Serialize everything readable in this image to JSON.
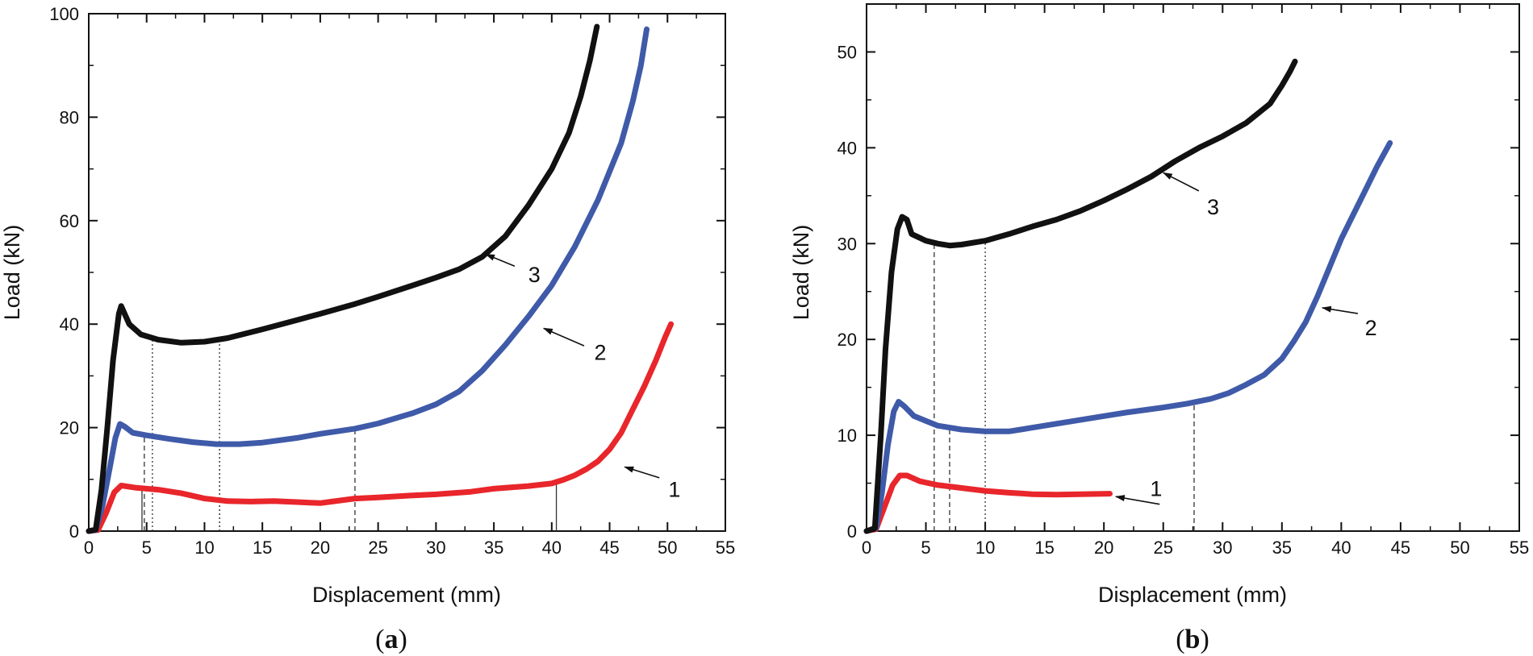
{
  "panels": [
    {
      "id": "a",
      "panel_label": "a",
      "xlabel": "Displacement (mm)",
      "ylabel": "Load (kN)",
      "xlim": [
        0,
        55
      ],
      "ylim": [
        0,
        100
      ],
      "xticks": [
        0,
        5,
        10,
        15,
        20,
        25,
        30,
        35,
        40,
        45,
        50,
        55
      ],
      "yticks": [
        0,
        20,
        40,
        60,
        80,
        100
      ],
      "series": [
        {
          "name": "1",
          "color": "#e8262b",
          "points": [
            [
              0,
              0
            ],
            [
              0.8,
              0.2
            ],
            [
              1.5,
              3.5
            ],
            [
              2.2,
              7.5
            ],
            [
              2.8,
              8.8
            ],
            [
              4,
              8.4
            ],
            [
              6,
              8
            ],
            [
              8,
              7.3
            ],
            [
              10,
              6.3
            ],
            [
              12,
              5.8
            ],
            [
              14,
              5.7
            ],
            [
              16,
              5.8
            ],
            [
              18,
              5.6
            ],
            [
              20,
              5.4
            ],
            [
              21,
              5.7
            ],
            [
              23,
              6.3
            ],
            [
              25,
              6.5
            ],
            [
              28,
              6.9
            ],
            [
              30,
              7.1
            ],
            [
              33,
              7.6
            ],
            [
              35,
              8.2
            ],
            [
              38,
              8.7
            ],
            [
              40,
              9.2
            ],
            [
              41,
              9.9
            ],
            [
              42,
              10.8
            ],
            [
              43,
              12
            ],
            [
              44,
              13.5
            ],
            [
              45,
              15.8
            ],
            [
              46,
              19
            ],
            [
              47,
              23.5
            ],
            [
              48,
              28
            ],
            [
              49,
              33
            ],
            [
              49.8,
              37.5
            ],
            [
              50.3,
              40
            ]
          ]
        },
        {
          "name": "2",
          "color": "#3f5aa8",
          "points": [
            [
              0,
              0
            ],
            [
              0.6,
              0.2
            ],
            [
              1.2,
              5
            ],
            [
              1.8,
              12
            ],
            [
              2.3,
              18
            ],
            [
              2.7,
              20.7
            ],
            [
              3.1,
              20.2
            ],
            [
              3.8,
              19
            ],
            [
              5,
              18.5
            ],
            [
              7,
              17.8
            ],
            [
              9,
              17.2
            ],
            [
              11,
              16.8
            ],
            [
              13,
              16.8
            ],
            [
              15,
              17.1
            ],
            [
              18,
              18
            ],
            [
              20,
              18.8
            ],
            [
              23,
              19.8
            ],
            [
              25,
              20.8
            ],
            [
              28,
              22.8
            ],
            [
              30,
              24.5
            ],
            [
              32,
              27
            ],
            [
              34,
              31
            ],
            [
              36,
              36
            ],
            [
              38,
              41.5
            ],
            [
              40,
              47.5
            ],
            [
              42,
              55
            ],
            [
              44,
              64
            ],
            [
              46,
              75
            ],
            [
              47,
              83
            ],
            [
              47.7,
              90
            ],
            [
              48.2,
              97
            ]
          ]
        },
        {
          "name": "3",
          "color": "#111111",
          "points": [
            [
              0,
              0
            ],
            [
              0.6,
              0.3
            ],
            [
              1.1,
              8
            ],
            [
              1.6,
              20
            ],
            [
              2.1,
              33
            ],
            [
              2.6,
              42
            ],
            [
              2.8,
              43.5
            ],
            [
              3.1,
              42
            ],
            [
              3.5,
              40
            ],
            [
              4.5,
              38
            ],
            [
              6,
              37
            ],
            [
              8,
              36.4
            ],
            [
              10,
              36.6
            ],
            [
              12,
              37.3
            ],
            [
              15,
              39
            ],
            [
              18,
              40.8
            ],
            [
              20,
              42
            ],
            [
              23,
              43.9
            ],
            [
              25,
              45.3
            ],
            [
              28,
              47.5
            ],
            [
              30,
              49
            ],
            [
              32,
              50.6
            ],
            [
              34,
              53
            ],
            [
              36,
              57
            ],
            [
              38,
              63
            ],
            [
              40,
              70
            ],
            [
              41.5,
              77
            ],
            [
              42.5,
              84
            ],
            [
              43.3,
              91
            ],
            [
              43.9,
              97.5
            ]
          ]
        }
      ],
      "annotations": [
        {
          "text": "1",
          "data_x": 50.6,
          "data_y": 8,
          "arrow_from": [
            49.3,
            10.3
          ],
          "arrow_to": [
            46.3,
            12.4
          ]
        },
        {
          "text": "2",
          "data_x": 44.2,
          "data_y": 34.5,
          "arrow_from": [
            42.8,
            35.8
          ],
          "arrow_to": [
            39.3,
            39.2
          ]
        },
        {
          "text": "3",
          "data_x": 38.5,
          "data_y": 49.5,
          "arrow_from": [
            36.8,
            51.2
          ],
          "arrow_to": [
            34.3,
            53.5
          ]
        }
      ],
      "droplines": [
        {
          "x": 4.6,
          "y": 8.4,
          "style": "solid"
        },
        {
          "x": 4.8,
          "y": 18.6,
          "style": "dashed"
        },
        {
          "x": 5.5,
          "y": 37.5,
          "style": "dotted"
        },
        {
          "x": 11.3,
          "y": 16.8,
          "style": "dotted"
        },
        {
          "x": 11.3,
          "y": 36.9,
          "style": "dotted"
        },
        {
          "x": 23.0,
          "y": 19.8,
          "style": "dashed"
        },
        {
          "x": 40.4,
          "y": 9.4,
          "style": "solid"
        }
      ]
    },
    {
      "id": "b",
      "panel_label": "b",
      "xlabel": "Displacement (mm)",
      "ylabel": "Load (kN)",
      "xlim": [
        0,
        55
      ],
      "ylim": [
        0,
        55
      ],
      "xticks": [
        0,
        5,
        10,
        15,
        20,
        25,
        30,
        35,
        40,
        45,
        50,
        55
      ],
      "yticks": [
        0,
        10,
        20,
        30,
        40,
        50
      ],
      "series": [
        {
          "name": "1",
          "color": "#e8262b",
          "points": [
            [
              0,
              0
            ],
            [
              0.8,
              0.2
            ],
            [
              1.5,
              2.5
            ],
            [
              2.2,
              4.8
            ],
            [
              2.8,
              5.8
            ],
            [
              3.4,
              5.8
            ],
            [
              4.5,
              5.2
            ],
            [
              6,
              4.8
            ],
            [
              8,
              4.5
            ],
            [
              10,
              4.2
            ],
            [
              12,
              4
            ],
            [
              14,
              3.85
            ],
            [
              16,
              3.8
            ],
            [
              18,
              3.85
            ],
            [
              20.5,
              3.9
            ]
          ]
        },
        {
          "name": "2",
          "color": "#3f5aa8",
          "points": [
            [
              0,
              0
            ],
            [
              0.8,
              0.3
            ],
            [
              1.3,
              4
            ],
            [
              1.8,
              9
            ],
            [
              2.3,
              12.5
            ],
            [
              2.7,
              13.5
            ],
            [
              3.2,
              13
            ],
            [
              4,
              12
            ],
            [
              6,
              11
            ],
            [
              8,
              10.6
            ],
            [
              10,
              10.4
            ],
            [
              12,
              10.4
            ],
            [
              14,
              10.8
            ],
            [
              18,
              11.6
            ],
            [
              20,
              12
            ],
            [
              22,
              12.4
            ],
            [
              25,
              12.9
            ],
            [
              27,
              13.3
            ],
            [
              29,
              13.8
            ],
            [
              30.5,
              14.4
            ],
            [
              32,
              15.3
            ],
            [
              33.5,
              16.3
            ],
            [
              35,
              18
            ],
            [
              36,
              19.8
            ],
            [
              37,
              21.8
            ],
            [
              38,
              24.5
            ],
            [
              39,
              27.5
            ],
            [
              40,
              30.5
            ],
            [
              41,
              33
            ],
            [
              42,
              35.5
            ],
            [
              43,
              38
            ],
            [
              44.1,
              40.5
            ]
          ]
        },
        {
          "name": "3",
          "color": "#111111",
          "points": [
            [
              0,
              0
            ],
            [
              0.7,
              0.3
            ],
            [
              1.2,
              10
            ],
            [
              1.6,
              19
            ],
            [
              2.1,
              27
            ],
            [
              2.6,
              31.5
            ],
            [
              3,
              32.8
            ],
            [
              3.4,
              32.5
            ],
            [
              3.8,
              31
            ],
            [
              5,
              30.3
            ],
            [
              6,
              30
            ],
            [
              7,
              29.8
            ],
            [
              8,
              29.9
            ],
            [
              10,
              30.3
            ],
            [
              12,
              31
            ],
            [
              14,
              31.8
            ],
            [
              16,
              32.5
            ],
            [
              18,
              33.4
            ],
            [
              20,
              34.5
            ],
            [
              22,
              35.7
            ],
            [
              24,
              37
            ],
            [
              26,
              38.6
            ],
            [
              28,
              40
            ],
            [
              30,
              41.2
            ],
            [
              32,
              42.6
            ],
            [
              34,
              44.6
            ],
            [
              35,
              46.5
            ],
            [
              35.7,
              48
            ],
            [
              36.1,
              49
            ]
          ]
        }
      ],
      "annotations": [
        {
          "text": "1",
          "data_x": 24.4,
          "data_y": 4.4,
          "arrow_from": [
            24.7,
            2.8
          ],
          "arrow_to": [
            21.0,
            3.6
          ]
        },
        {
          "text": "2",
          "data_x": 42.5,
          "data_y": 21.2,
          "arrow_from": [
            41.4,
            22.7
          ],
          "arrow_to": [
            38.4,
            23.3
          ]
        },
        {
          "text": "3",
          "data_x": 29.2,
          "data_y": 33.8,
          "arrow_from": [
            28.0,
            35.5
          ],
          "arrow_to": [
            25.0,
            37.4
          ]
        }
      ],
      "droplines": [
        {
          "x": 5.7,
          "y": 29.8,
          "style": "dashed"
        },
        {
          "x": 7.0,
          "y": 10.8,
          "style": "dashed"
        },
        {
          "x": 10.0,
          "y": 30.2,
          "style": "dotted"
        },
        {
          "x": 27.6,
          "y": 13.3,
          "style": "dashed"
        }
      ]
    }
  ],
  "chart_data": [
    {
      "type": "line",
      "title": "(a)",
      "xlabel": "Displacement (mm)",
      "ylabel": "Load (kN)",
      "xlim": [
        0,
        55
      ],
      "ylim": [
        0,
        100
      ],
      "series": [
        {
          "name": "1",
          "x": [
            0,
            2.8,
            10,
            20,
            30,
            40,
            45,
            50.3
          ],
          "y": [
            0,
            8.8,
            6.3,
            5.4,
            7.1,
            9.2,
            15.8,
            40
          ]
        },
        {
          "name": "2",
          "x": [
            0,
            2.7,
            11,
            20,
            30,
            40,
            48.2
          ],
          "y": [
            0,
            20.7,
            16.8,
            18.8,
            24.5,
            47.5,
            97
          ]
        },
        {
          "name": "3",
          "x": [
            0,
            2.8,
            8,
            20,
            30,
            40,
            43.9
          ],
          "y": [
            0,
            43.5,
            36.4,
            42,
            49,
            70,
            97.5
          ]
        }
      ]
    },
    {
      "type": "line",
      "title": "(b)",
      "xlabel": "Displacement (mm)",
      "ylabel": "Load (kN)",
      "xlim": [
        0,
        55
      ],
      "ylim": [
        0,
        55
      ],
      "series": [
        {
          "name": "1",
          "x": [
            0,
            3,
            10,
            20.5
          ],
          "y": [
            0,
            5.8,
            4.2,
            3.9
          ]
        },
        {
          "name": "2",
          "x": [
            0,
            2.7,
            11,
            30,
            40,
            44.1
          ],
          "y": [
            0,
            13.5,
            10.4,
            14.1,
            30.5,
            40.5
          ]
        },
        {
          "name": "3",
          "x": [
            0,
            3,
            7,
            20,
            30,
            36.1
          ],
          "y": [
            0,
            32.8,
            29.8,
            34.5,
            41.2,
            49
          ]
        }
      ]
    }
  ]
}
